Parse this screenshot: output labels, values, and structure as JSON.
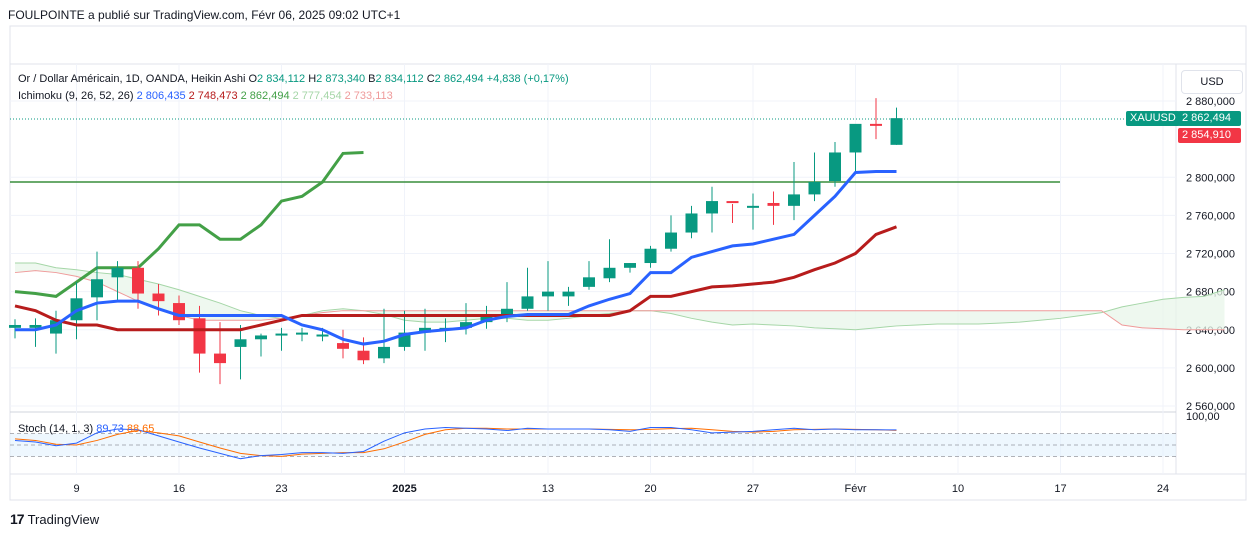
{
  "header": {
    "publisher_line": "FOULPOINTE a publié sur TradingView.com, Févr 06, 2025 09:02 UTC+1"
  },
  "legend": {
    "symbol": "Or / Dollar Américain, 1D, OANDA, Heikin Ashi",
    "o_label": "O",
    "o_value": "2 834,112",
    "h_label": "H",
    "h_value": "2 873,340",
    "b_label": "B",
    "b_value": "2 834,112",
    "c_label": "C",
    "c_value": "2 862,494",
    "change": "+4,838 (+0,17%)",
    "ichimoku_label": "Ichimoku (9, 26, 52, 26)",
    "ichi_values": [
      "2 806,435",
      "2 748,473",
      "2 862,494",
      "2 777,454",
      "2 733,113"
    ],
    "stoch_label": "Stoch (14, 1, 3)",
    "stoch_values": [
      "89,73",
      "88,65"
    ]
  },
  "price_scale": {
    "currency": "USD",
    "ticks": [
      "2 880,000",
      "2 800,000",
      "2 760,000",
      "2 720,000",
      "2 680,000",
      "2 640,000",
      "2 600,000",
      "2 560,000"
    ],
    "stoch_tick": "100,00",
    "symbol_tag": "XAUUSD",
    "last_price": "2 862,494",
    "kijun_price": "2 854,910"
  },
  "time_axis": {
    "labels": [
      "9",
      "16",
      "23",
      "2025",
      "13",
      "20",
      "27",
      "Févr",
      "10",
      "17",
      "24"
    ]
  },
  "brand": {
    "name": "TradingView"
  },
  "colors": {
    "up": "#089981",
    "down": "#f23645",
    "tenkan": "#2962ff",
    "kijun": "#b71c1c",
    "chikou": "#43a047",
    "cloud_up": "#a5d6a7",
    "cloud_down": "#ef9a9a",
    "stoch_k": "#2962ff",
    "stoch_d": "#ff6d00",
    "hline": "#388e3c"
  },
  "chart_data": {
    "type": "candlestick",
    "title": "Or / Dollar Américain, 1D, OANDA, Heikin Ashi",
    "x": [
      "Dec 05",
      "Dec 06",
      "Dec 09",
      "Dec 10",
      "Dec 11",
      "Dec 12",
      "Dec 13",
      "Dec 16",
      "Dec 17",
      "Dec 18",
      "Dec 19",
      "Dec 20",
      "Dec 23",
      "Dec 24",
      "Dec 26",
      "Dec 27",
      "Dec 30",
      "Dec 31",
      "Jan 02",
      "Jan 03",
      "Jan 06",
      "Jan 07",
      "Jan 08",
      "Jan 09",
      "Jan 10",
      "Jan 13",
      "Jan 14",
      "Jan 15",
      "Jan 16",
      "Jan 17",
      "Jan 20",
      "Jan 21",
      "Jan 22",
      "Jan 23",
      "Jan 24",
      "Jan 27",
      "Jan 28",
      "Jan 29",
      "Jan 30",
      "Jan 31",
      "Feb 03",
      "Feb 04",
      "Feb 05",
      "Feb 06"
    ],
    "open": [
      2642,
      2642,
      2636,
      2650,
      2674,
      2695,
      2705,
      2678,
      2668,
      2652,
      2615,
      2622,
      2630,
      2634,
      2637,
      2635,
      2626,
      2618,
      2610,
      2622,
      2637,
      2642,
      2642,
      2648,
      2655,
      2662,
      2675,
      2675,
      2685,
      2694,
      2705,
      2710,
      2725,
      2742,
      2762,
      2775,
      2770,
      2773,
      2770,
      2782,
      2796,
      2826,
      2856,
      2834
    ],
    "high": [
      2651,
      2652,
      2660,
      2690,
      2722,
      2712,
      2712,
      2688,
      2676,
      2665,
      2648,
      2645,
      2636,
      2642,
      2642,
      2642,
      2640,
      2632,
      2662,
      2660,
      2662,
      2652,
      2668,
      2665,
      2690,
      2705,
      2712,
      2685,
      2712,
      2735,
      2710,
      2728,
      2760,
      2770,
      2790,
      2772,
      2783,
      2785,
      2816,
      2826,
      2837,
      2855,
      2883,
      2873
    ],
    "low": [
      2631,
      2622,
      2615,
      2630,
      2650,
      2670,
      2662,
      2655,
      2645,
      2595,
      2583,
      2588,
      2612,
      2618,
      2628,
      2628,
      2610,
      2604,
      2605,
      2618,
      2618,
      2627,
      2635,
      2641,
      2648,
      2660,
      2660,
      2665,
      2682,
      2690,
      2700,
      2705,
      2722,
      2736,
      2742,
      2752,
      2745,
      2750,
      2755,
      2775,
      2790,
      2805,
      2840,
      2834
    ],
    "close": [
      2645,
      2645,
      2650,
      2673,
      2693,
      2705,
      2678,
      2670,
      2650,
      2615,
      2605,
      2630,
      2634,
      2636,
      2637,
      2635,
      2620,
      2608,
      2622,
      2637,
      2642,
      2642,
      2648,
      2655,
      2662,
      2675,
      2680,
      2680,
      2695,
      2705,
      2710,
      2725,
      2742,
      2762,
      2775,
      2773,
      2770,
      2770,
      2782,
      2795,
      2826,
      2856,
      2855,
      2862
    ],
    "tenkan": [
      2640,
      2640,
      2645,
      2660,
      2668,
      2670,
      2670,
      2662,
      2655,
      2655,
      2655,
      2655,
      2655,
      2655,
      2645,
      2640,
      2630,
      2625,
      2628,
      2635,
      2638,
      2640,
      2642,
      2650,
      2654,
      2656,
      2656,
      2656,
      2665,
      2672,
      2678,
      2700,
      2700,
      2716,
      2722,
      2728,
      2730,
      2735,
      2740,
      2760,
      2780,
      2805,
      2806,
      2806
    ],
    "kijun": [
      2665,
      2660,
      2650,
      2645,
      2645,
      2640,
      2640,
      2640,
      2640,
      2640,
      2640,
      2640,
      2645,
      2650,
      2655,
      2655,
      2655,
      2655,
      2655,
      2655,
      2655,
      2655,
      2655,
      2655,
      2655,
      2655,
      2655,
      2655,
      2655,
      2655,
      2660,
      2675,
      2675,
      2680,
      2685,
      2686,
      2688,
      2690,
      2695,
      2703,
      2710,
      2720,
      2740,
      2748
    ],
    "chikou": [
      2680,
      2678,
      2675,
      2690,
      2705,
      2705,
      2705,
      2725,
      2750,
      2750,
      2735,
      2735,
      2750,
      2775,
      2780,
      2795,
      2825,
      2826
    ],
    "stoch_k": [
      62,
      58,
      48,
      55,
      82,
      92,
      90,
      74,
      58,
      42,
      28,
      14,
      22,
      25,
      30,
      30,
      28,
      33,
      60,
      82,
      92,
      96,
      94,
      92,
      88,
      94,
      92,
      92,
      92,
      90,
      86,
      96,
      96,
      90,
      82,
      84,
      86,
      90,
      94,
      90,
      92,
      90,
      90,
      89.73
    ],
    "stoch_d": [
      66,
      62,
      52,
      50,
      62,
      78,
      88,
      82,
      74,
      58,
      42,
      28,
      22,
      20,
      26,
      28,
      30,
      30,
      40,
      58,
      78,
      90,
      94,
      94,
      92,
      92,
      92,
      92,
      92,
      91,
      90,
      91,
      93,
      94,
      90,
      86,
      84,
      86,
      90,
      91,
      92,
      91,
      90,
      88.65
    ],
    "hline": 2795,
    "ylim": [
      2550,
      2895
    ],
    "stoch_ylim": [
      0,
      100
    ]
  }
}
